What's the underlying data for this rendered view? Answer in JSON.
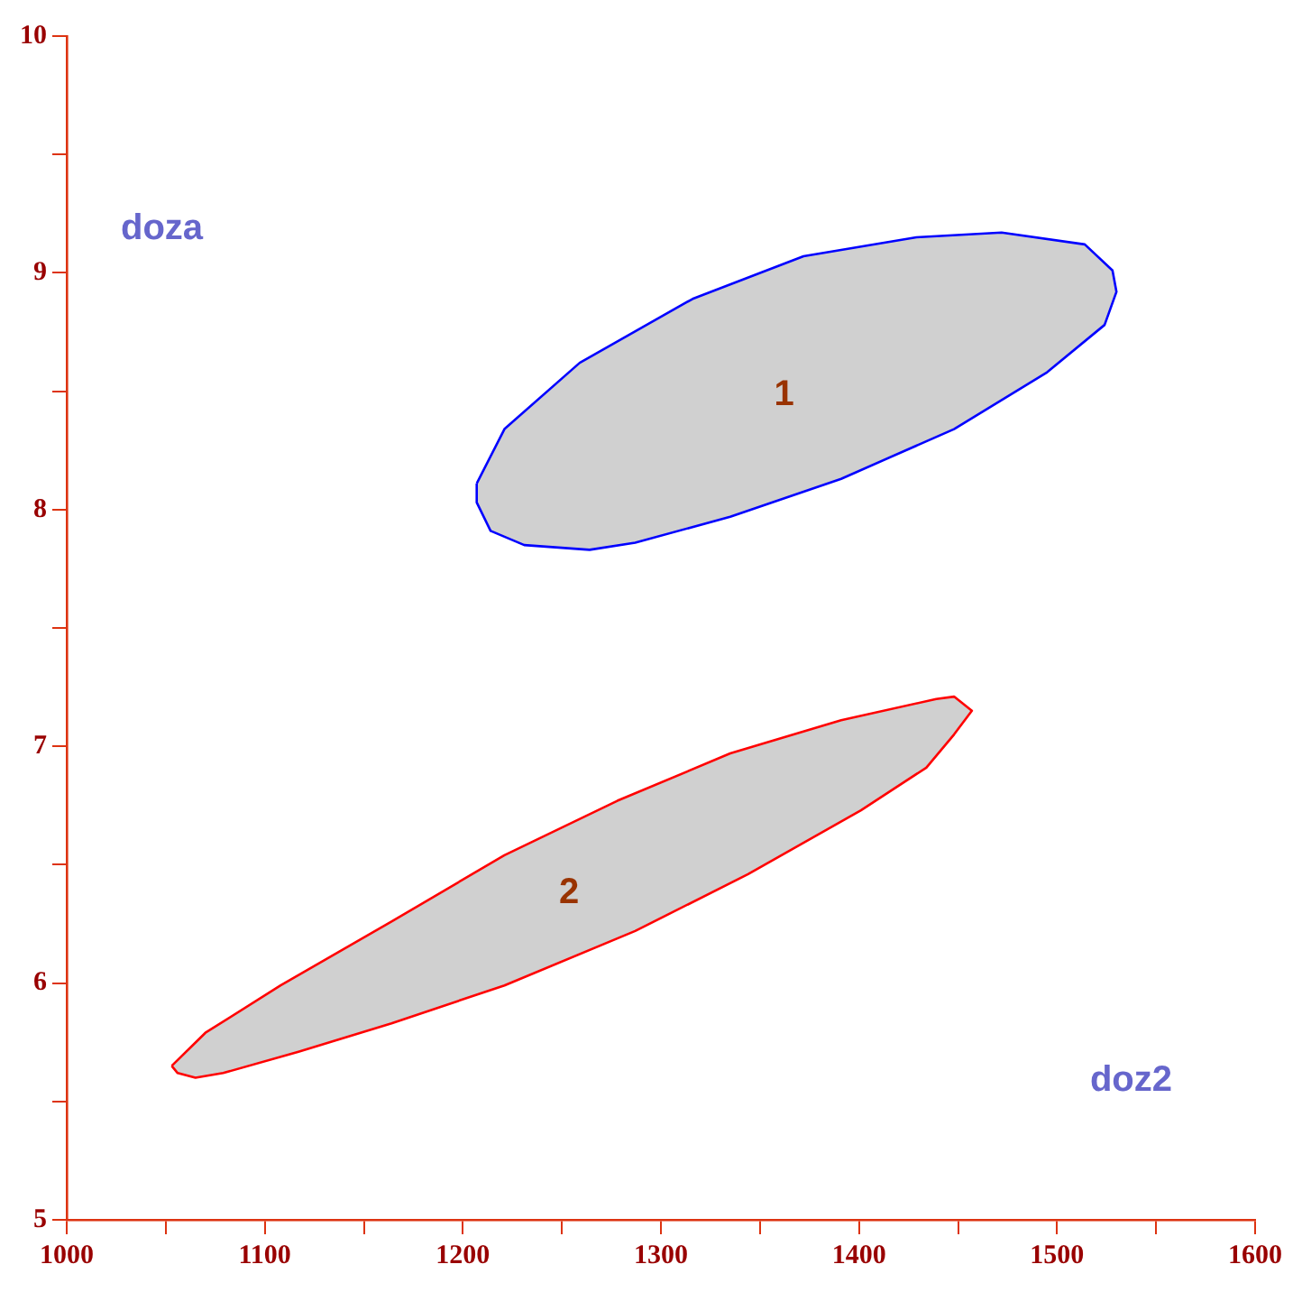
{
  "chart_data": {
    "type": "area",
    "xlabel": "doz2",
    "ylabel": "doza",
    "xlim": [
      1000,
      1600
    ],
    "ylim": [
      5,
      10
    ],
    "xticks": [
      1000,
      {
        "value": 1050,
        "label": null
      },
      1100,
      {
        "value": 1150,
        "label": null
      },
      1200,
      {
        "value": 1250,
        "label": null
      },
      1300,
      {
        "value": 1350,
        "label": null
      },
      1400,
      {
        "value": 1450,
        "label": null
      },
      1500,
      {
        "value": 1550,
        "label": null
      },
      1600
    ],
    "yticks": [
      5,
      {
        "value": 5.5,
        "label": null
      },
      6,
      {
        "value": 6.5,
        "label": null
      },
      7,
      {
        "value": 7.5,
        "label": null
      },
      8,
      {
        "value": 8.5,
        "label": null
      },
      9,
      {
        "value": 9.5,
        "label": null
      },
      10
    ],
    "grid": false,
    "legend": false,
    "series": [
      {
        "name": "1",
        "color": "#0000ff",
        "x": [
          1207,
          1221,
          1259,
          1316,
          1372,
          1429,
          1472,
          1514,
          1528,
          1530,
          1524,
          1495,
          1448,
          1391,
          1335,
          1287,
          1264,
          1231,
          1214,
          1207
        ],
        "values": [
          8.11,
          8.34,
          8.62,
          8.89,
          9.07,
          9.15,
          9.17,
          9.12,
          9.01,
          8.92,
          8.78,
          8.58,
          8.34,
          8.13,
          7.97,
          7.86,
          7.83,
          7.85,
          7.91,
          8.03
        ]
      },
      {
        "name": "2",
        "color": "#ff0000",
        "x": [
          1053,
          1070,
          1108,
          1164,
          1221,
          1278,
          1335,
          1391,
          1439,
          1448,
          1457,
          1448,
          1434,
          1401,
          1344,
          1287,
          1221,
          1164,
          1117,
          1079,
          1065,
          1056
        ],
        "values": [
          5.65,
          5.79,
          5.99,
          6.26,
          6.54,
          6.77,
          6.97,
          7.11,
          7.2,
          7.21,
          7.15,
          7.05,
          6.91,
          6.73,
          6.46,
          6.22,
          5.99,
          5.83,
          5.71,
          5.62,
          5.6,
          5.62
        ]
      }
    ]
  }
}
